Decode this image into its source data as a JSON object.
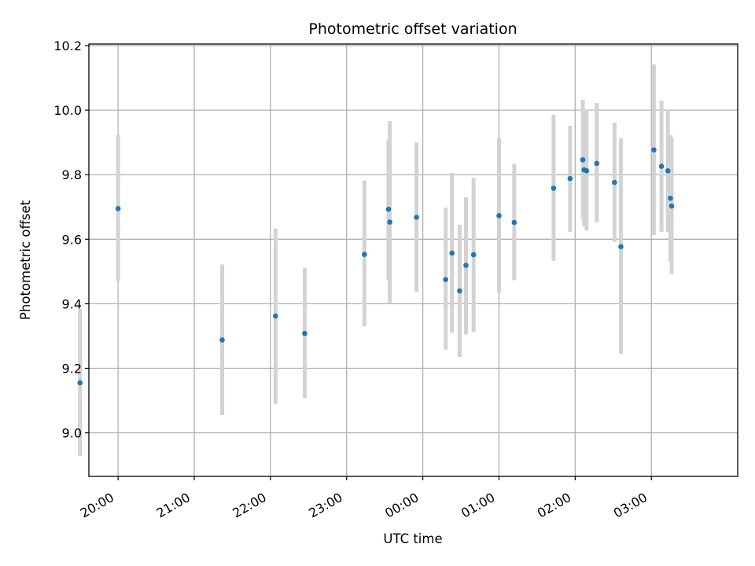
{
  "chart_data": {
    "type": "scatter",
    "title": "Photometric offset variation",
    "xlabel": "UTC time",
    "ylabel": "Photometric offset",
    "x_axis": {
      "kind": "time",
      "range": [
        "19:37",
        "04:08"
      ],
      "ticks": [
        "20:00",
        "21:00",
        "22:00",
        "23:00",
        "00:00",
        "01:00",
        "02:00",
        "03:00"
      ]
    },
    "y_axis": {
      "range": [
        8.865,
        10.205
      ],
      "ticks": [
        "9.0",
        "9.2",
        "9.4",
        "9.6",
        "9.8",
        "10.0",
        "10.2"
      ]
    },
    "grid": true,
    "colors": {
      "marker": "#1f77b4",
      "errorbar": "#d3d3d3",
      "grid": "#b0b0b0"
    },
    "series": [
      {
        "points": [
          {
            "x": "19:30",
            "y": 9.155,
            "ylow": 8.928,
            "yhigh": 9.383
          },
          {
            "x": "20:00",
            "y": 9.695,
            "ylow": 9.47,
            "yhigh": 9.923
          },
          {
            "x": "21:22",
            "y": 9.288,
            "ylow": 9.055,
            "yhigh": 9.522
          },
          {
            "x": "22:04",
            "y": 9.362,
            "ylow": 9.09,
            "yhigh": 9.633
          },
          {
            "x": "22:27",
            "y": 9.308,
            "ylow": 9.108,
            "yhigh": 9.511
          },
          {
            "x": "23:14",
            "y": 9.553,
            "ylow": 9.33,
            "yhigh": 9.782
          },
          {
            "x": "23:33",
            "y": 9.693,
            "ylow": 9.475,
            "yhigh": 9.91
          },
          {
            "x": "23:34",
            "y": 9.653,
            "ylow": 9.4,
            "yhigh": 9.966
          },
          {
            "x": "23:55",
            "y": 9.668,
            "ylow": 9.437,
            "yhigh": 9.9
          },
          {
            "x": "00:18",
            "y": 9.475,
            "ylow": 9.258,
            "yhigh": 9.698
          },
          {
            "x": "00:23",
            "y": 9.557,
            "ylow": 9.31,
            "yhigh": 9.806
          },
          {
            "x": "00:29",
            "y": 9.44,
            "ylow": 9.235,
            "yhigh": 9.645
          },
          {
            "x": "00:34",
            "y": 9.519,
            "ylow": 9.305,
            "yhigh": 9.73
          },
          {
            "x": "00:40",
            "y": 9.552,
            "ylow": 9.312,
            "yhigh": 9.79
          },
          {
            "x": "01:00",
            "y": 9.673,
            "ylow": 9.434,
            "yhigh": 9.914
          },
          {
            "x": "01:12",
            "y": 9.652,
            "ylow": 9.473,
            "yhigh": 9.834
          },
          {
            "x": "01:43",
            "y": 9.758,
            "ylow": 9.533,
            "yhigh": 9.986
          },
          {
            "x": "01:56",
            "y": 9.788,
            "ylow": 9.623,
            "yhigh": 9.952
          },
          {
            "x": "02:06",
            "y": 9.846,
            "ylow": 9.662,
            "yhigh": 10.032
          },
          {
            "x": "02:07",
            "y": 9.815,
            "ylow": 9.64,
            "yhigh": 9.99
          },
          {
            "x": "02:09",
            "y": 9.812,
            "ylow": 9.627,
            "yhigh": 10.0
          },
          {
            "x": "02:17",
            "y": 9.835,
            "ylow": 9.652,
            "yhigh": 10.022
          },
          {
            "x": "02:31",
            "y": 9.776,
            "ylow": 9.592,
            "yhigh": 9.962
          },
          {
            "x": "02:36",
            "y": 9.577,
            "ylow": 9.245,
            "yhigh": 9.913
          },
          {
            "x": "03:02",
            "y": 9.877,
            "ylow": 9.613,
            "yhigh": 10.142
          },
          {
            "x": "03:08",
            "y": 9.826,
            "ylow": 9.623,
            "yhigh": 10.029
          },
          {
            "x": "03:13",
            "y": 9.812,
            "ylow": 9.622,
            "yhigh": 10.0
          },
          {
            "x": "03:15",
            "y": 9.727,
            "ylow": 9.53,
            "yhigh": 9.923
          },
          {
            "x": "03:16",
            "y": 9.703,
            "ylow": 9.492,
            "yhigh": 9.915
          }
        ]
      }
    ]
  }
}
